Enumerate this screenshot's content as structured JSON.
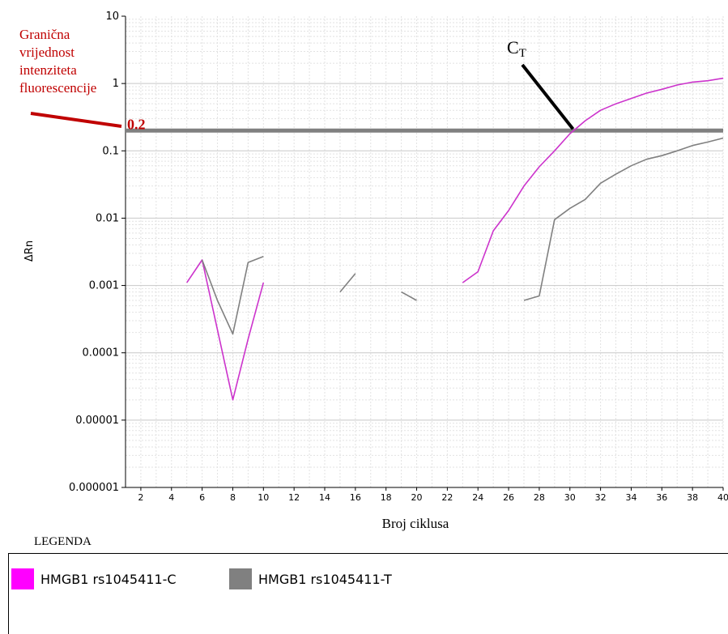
{
  "chart_data": {
    "type": "line",
    "xlabel": "Broj ciklusa",
    "ylabel": "ΔRn",
    "xlim": [
      1,
      40
    ],
    "ylim": [
      1e-06,
      10
    ],
    "y_scale": "log",
    "x_ticks": [
      2,
      4,
      6,
      8,
      10,
      12,
      14,
      16,
      18,
      20,
      22,
      24,
      26,
      28,
      30,
      32,
      34,
      36,
      38,
      40
    ],
    "y_ticks": [
      "10",
      "1",
      "0.1",
      "0.01",
      "0.001",
      "0.0001",
      "0.00001",
      "0.000001"
    ],
    "grid": true,
    "threshold": {
      "value": 0.2,
      "label": "0.2",
      "color": "#808080"
    },
    "ct_annotation": {
      "label": "C",
      "subscript": "T",
      "x": 30.2,
      "y": 0.2
    },
    "threshold_annotation": {
      "lines": [
        "Granična",
        "vrijednost",
        "intenziteta",
        "fluorescencije"
      ],
      "color": "#c00000"
    },
    "series": [
      {
        "name": "HMGB1 rs1045411-C",
        "color": "#cc33cc",
        "segments": [
          {
            "x": [
              5,
              6,
              7,
              8,
              9,
              10
            ],
            "y": [
              0.0011,
              0.0024,
              0.00022,
              2e-05,
              0.00016,
              0.0011
            ]
          },
          {
            "x": [
              23,
              24,
              25,
              26,
              27,
              28,
              29,
              30,
              31,
              32,
              33,
              34,
              35,
              36,
              37,
              38,
              39,
              40
            ],
            "y": [
              0.0011,
              0.0016,
              0.0065,
              0.013,
              0.03,
              0.058,
              0.1,
              0.18,
              0.28,
              0.4,
              0.5,
              0.6,
              0.72,
              0.82,
              0.95,
              1.05,
              1.1,
              1.2
            ]
          }
        ]
      },
      {
        "name": "HMGB1 rs1045411-T",
        "color": "#808080",
        "segments": [
          {
            "x": [
              6,
              7,
              8,
              9,
              10
            ],
            "y": [
              0.0024,
              0.0006,
              0.00019,
              0.0022,
              0.0027
            ]
          },
          {
            "x": [
              15,
              16
            ],
            "y": [
              0.0008,
              0.0015
            ]
          },
          {
            "x": [
              19,
              20
            ],
            "y": [
              0.0008,
              0.0006
            ]
          },
          {
            "x": [
              27,
              28,
              29,
              30,
              31,
              32,
              33,
              34,
              35,
              36,
              37,
              38,
              39,
              40
            ],
            "y": [
              0.0006,
              0.0007,
              0.0095,
              0.014,
              0.019,
              0.033,
              0.045,
              0.06,
              0.075,
              0.085,
              0.1,
              0.12,
              0.135,
              0.155
            ]
          }
        ]
      }
    ]
  },
  "legend": {
    "title": "LEGENDA",
    "items": [
      {
        "label": "HMGB1 rs1045411-C",
        "color": "#ff00ff"
      },
      {
        "label": "HMGB1 rs1045411-T",
        "color": "#808080"
      }
    ]
  }
}
